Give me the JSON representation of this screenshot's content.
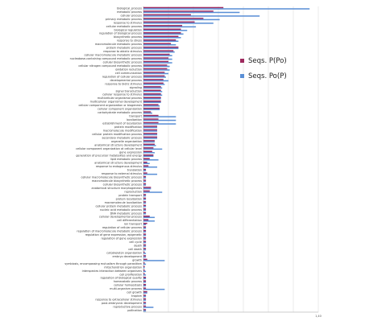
{
  "chart_data": {
    "type": "bar",
    "orientation": "horizontal",
    "grid": true,
    "legend_placement": "right",
    "xlim": [
      0,
      1400
    ],
    "x_tick_labels": [
      "",
      "",
      "",
      "",
      "",
      "",
      "",
      "1,40"
    ],
    "categories": [
      "biological_process",
      "metabolic process",
      "cellular process",
      "primary metabolic process",
      "response to stimulus",
      "cellular metabolic process",
      "biological regulation",
      "regulation of biological process",
      "biosynthetic process",
      "response to stress",
      "macromolecule metabolic process",
      "protein metabolic process",
      "response to abiotic stimulus",
      "cellular macromolecule metabolic process",
      "nucleobase-containing compound metabolic process",
      "cellular biosynthetic process",
      "cellular nitrogen compound metabolic process",
      "oxidation reduction",
      "cell communication",
      "regulation of cellular process",
      "developmental process",
      "response to biotic stimulus",
      "signaling",
      "signal transduction",
      "cellular response to stimulus",
      "multicellular organismal process",
      "multicellular organismal development",
      "cellular component organization or biogenesis",
      "cellular component organization",
      "carbohydrate metabolic process",
      "transport",
      "localization",
      "establishment of localization",
      "protein modification",
      "macromolecule modification",
      "cellular protein modification process",
      "secondary metabolic process",
      "organelle organization",
      "anatomical structure development",
      "cellular component organization at cellular level",
      "gene expression",
      "generation of precursor metabolites and energy",
      "lipid metabolic process",
      "anatomical structure development",
      "response to endogenous stimulus",
      "translation",
      "response to external stimulus",
      "cellular macromolecule biosynthetic process",
      "macromolecule biosynthetic process",
      "cellular biosynthetic process",
      "anatomical structure morphogenesis",
      "reproduction",
      "protein transport",
      "protein localization",
      "macromolecule localization",
      "cellular protein metabolic process",
      "nucleic acid metabolic process",
      "DNA metabolic process",
      "cellular developmental process",
      "cell differentiation",
      "ion transport",
      "regulation of cellular process",
      "regulation of macromolecule metabolic process",
      "regulation of gene expression, epigenetic",
      "regulation of gene expression",
      "cell cycle",
      "death",
      "cell death",
      "cytoskeleton organization",
      "embryo development",
      "growth",
      "symbiosis, encompassing mutualism through parasitism",
      "mitochondrion organization",
      "interspecies interaction between organisms",
      "cell proliferation",
      "regulation of biological quality",
      "homeostatic process",
      "cellular homeostasis",
      "multi-organism process",
      "cell growth",
      "tropism",
      "response to extracellular stimulus",
      "post-embryonic development",
      "reproductive process",
      "pollination"
    ],
    "series": [
      {
        "name": "Seqs. P(Po)",
        "color": "#9e2a5e",
        "values": [
          640,
          560,
          380,
          480,
          410,
          310,
          300,
          300,
          280,
          260,
          220,
          280,
          240,
          210,
          200,
          200,
          190,
          190,
          170,
          170,
          160,
          160,
          140,
          140,
          140,
          140,
          140,
          120,
          130,
          60,
          120,
          120,
          120,
          110,
          110,
          110,
          110,
          90,
          90,
          80,
          70,
          80,
          50,
          30,
          40,
          20,
          30,
          20,
          20,
          20,
          60,
          50,
          20,
          20,
          20,
          20,
          20,
          20,
          50,
          40,
          30,
          20,
          20,
          20,
          20,
          20,
          20,
          20,
          10,
          20,
          30,
          10,
          10,
          10,
          10,
          20,
          20,
          20,
          20,
          30,
          20,
          20,
          20,
          20,
          20
        ]
      },
      {
        "name": "Seqs. Po(P)",
        "color": "#5a8fd6",
        "values": [
          1330,
          770,
          930,
          610,
          560,
          420,
          350,
          320,
          300,
          280,
          260,
          280,
          250,
          230,
          230,
          230,
          210,
          210,
          200,
          180,
          200,
          170,
          150,
          150,
          150,
          140,
          140,
          130,
          130,
          70,
          260,
          260,
          260,
          110,
          110,
          110,
          110,
          90,
          100,
          150,
          90,
          80,
          120,
          50,
          110,
          20,
          110,
          20,
          20,
          20,
          60,
          150,
          20,
          20,
          20,
          20,
          20,
          20,
          90,
          90,
          20,
          20,
          20,
          20,
          20,
          20,
          20,
          20,
          20,
          20,
          170,
          20,
          10,
          20,
          20,
          20,
          20,
          20,
          170,
          30,
          20,
          20,
          20,
          80,
          20
        ]
      }
    ]
  }
}
